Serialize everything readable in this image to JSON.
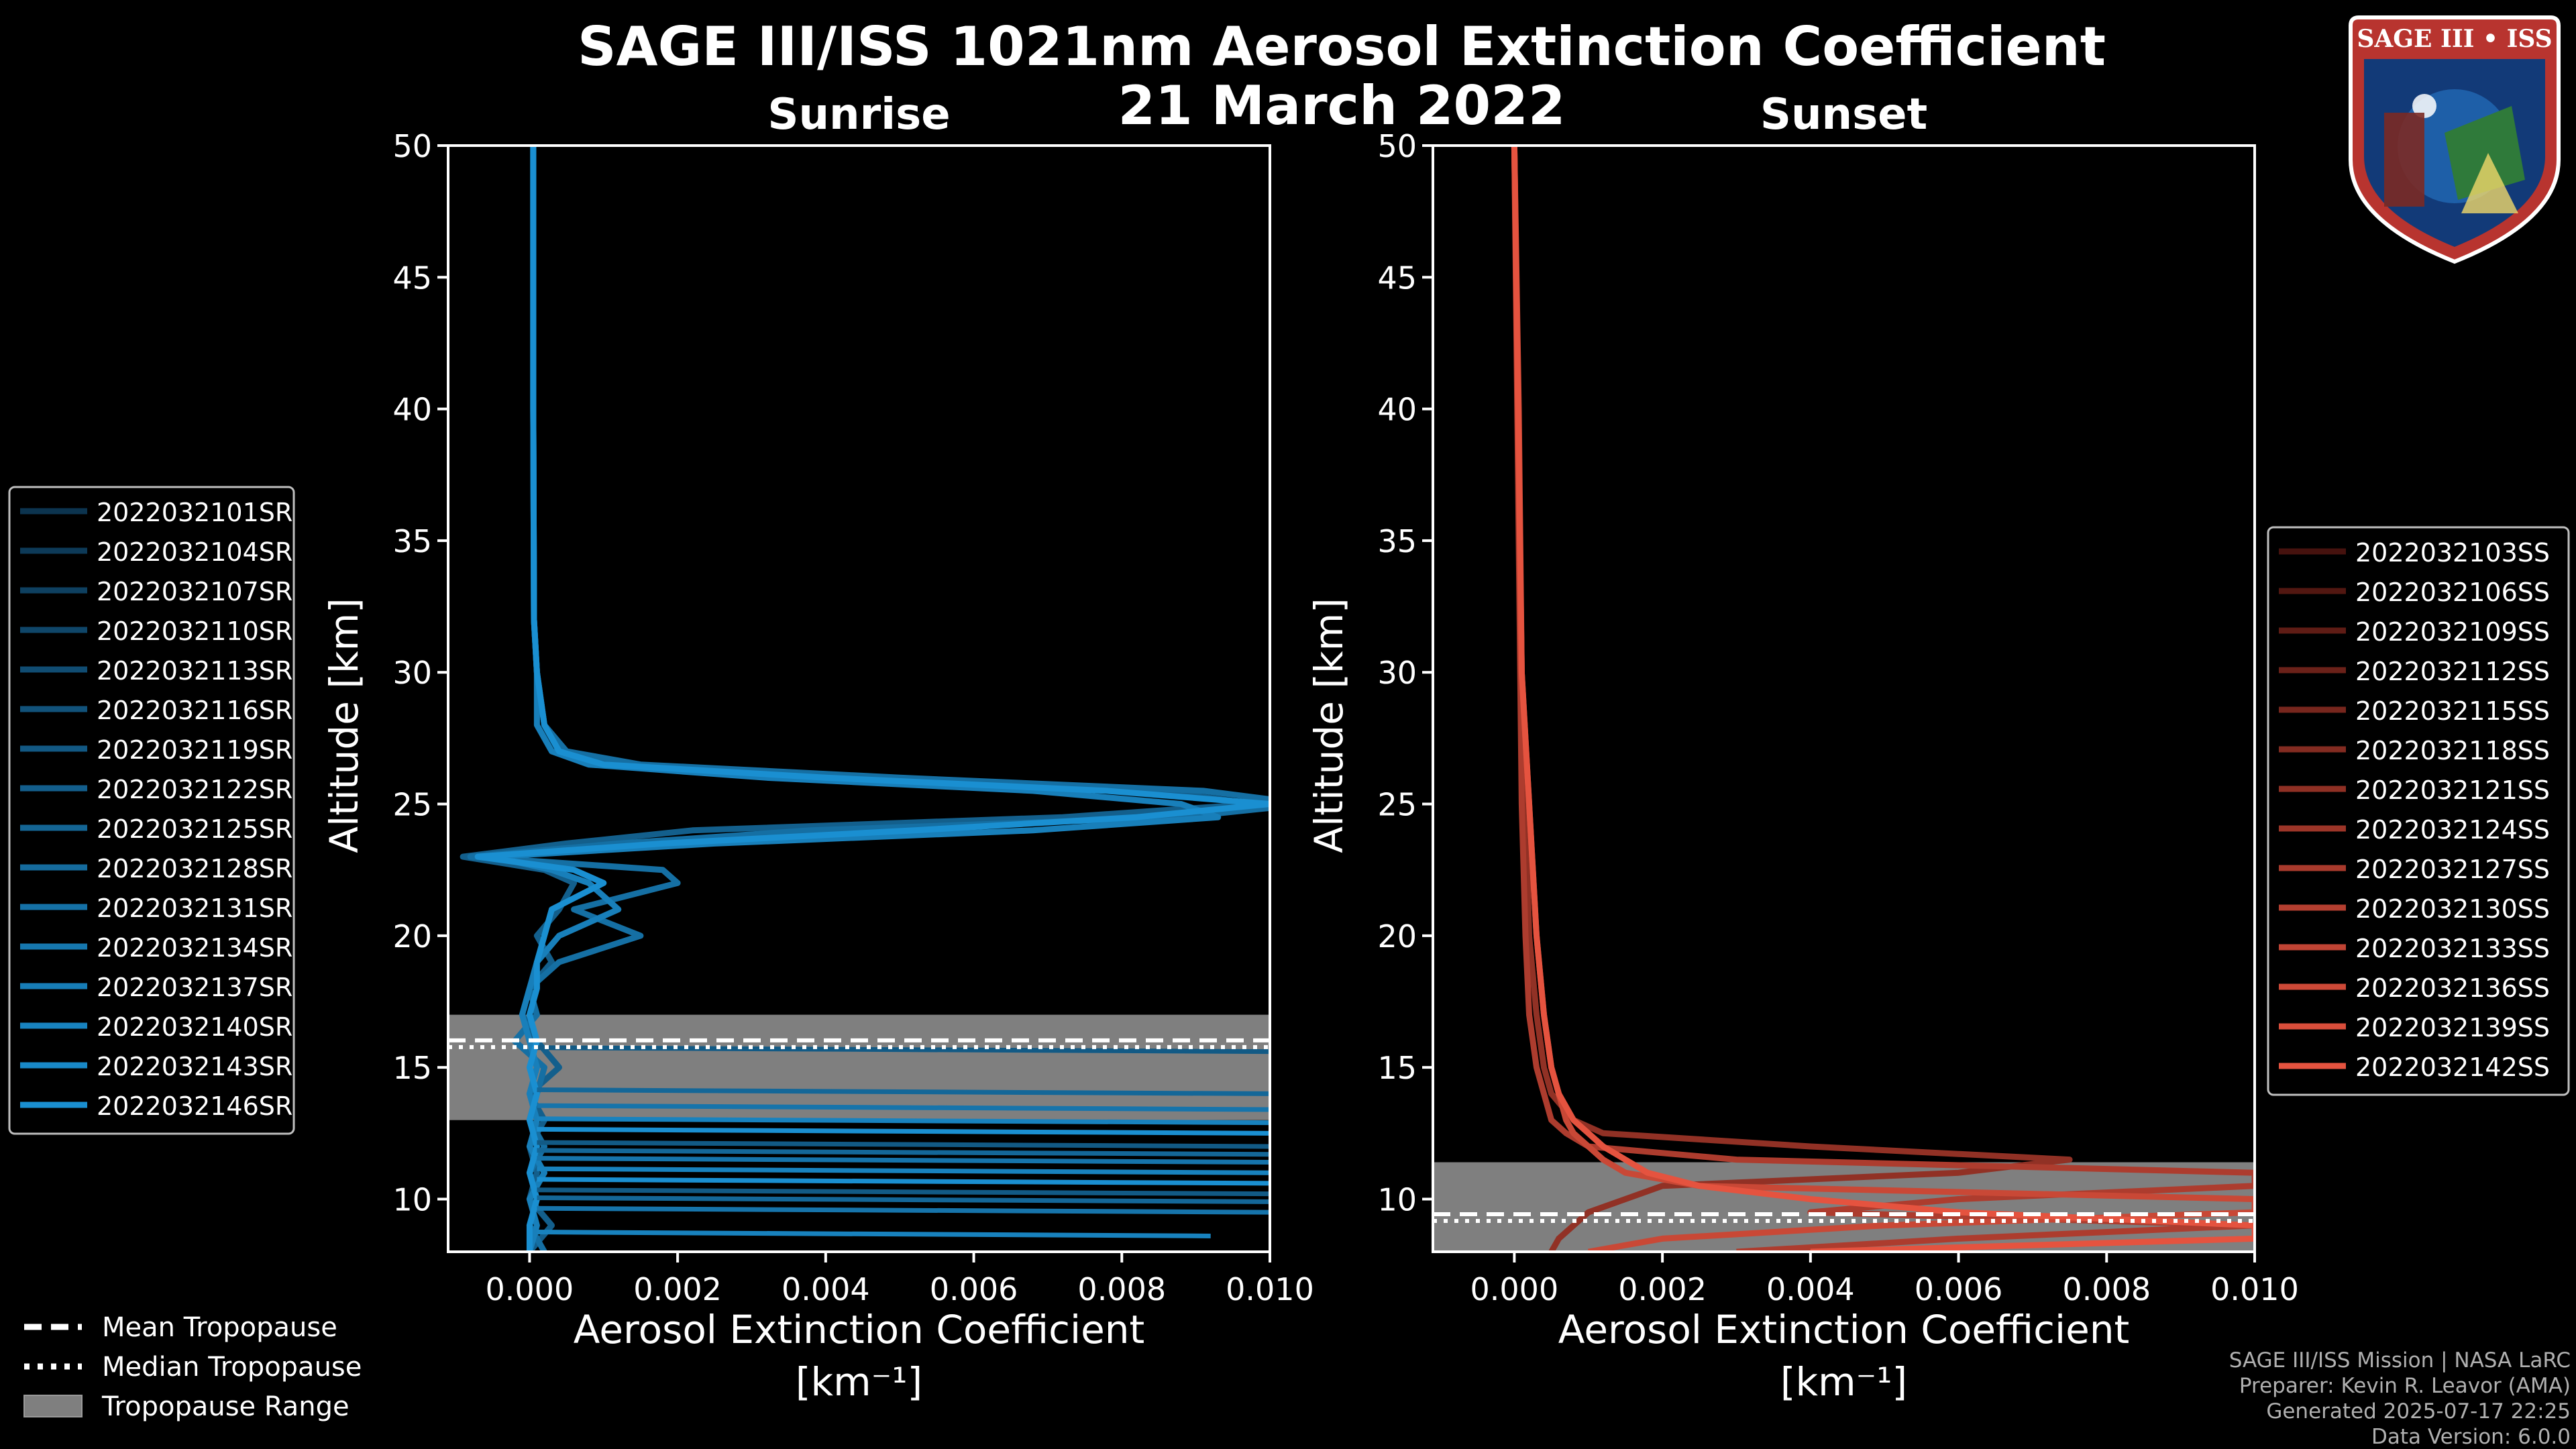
{
  "title_line1": "SAGE III/ISS 1021nm Aerosol Extinction Coefficient",
  "title_line2": "21 March 2022",
  "colors": {
    "background": "#000000",
    "sunrise_series": "#1a8fd1",
    "sunset_series": "#e5533f",
    "tropopause_band": "#7f7f7f",
    "legend_border": "#bfbfbf"
  },
  "sunrise_legend": [
    "2022032101SR",
    "2022032104SR",
    "2022032107SR",
    "2022032110SR",
    "2022032113SR",
    "2022032116SR",
    "2022032119SR",
    "2022032122SR",
    "2022032125SR",
    "2022032128SR",
    "2022032131SR",
    "2022032134SR",
    "2022032137SR",
    "2022032140SR",
    "2022032143SR",
    "2022032146SR"
  ],
  "sunset_legend": [
    "2022032103SS",
    "2022032106SS",
    "2022032109SS",
    "2022032112SS",
    "2022032115SS",
    "2022032118SS",
    "2022032121SS",
    "2022032124SS",
    "2022032127SS",
    "2022032130SS",
    "2022032133SS",
    "2022032136SS",
    "2022032139SS",
    "2022032142SS"
  ],
  "tropopause_legend": [
    "Mean Tropopause",
    "Median Tropopause",
    "Tropopause Range"
  ],
  "credits": [
    "SAGE III/ISS Mission | NASA LaRC",
    "Preparer: Kevin R. Leavor (AMA)",
    "Generated 2025-07-17 22:25",
    "Data Version: 6.0.0"
  ],
  "logo": {
    "text": "SAGE III • ISS"
  },
  "chart_data": [
    {
      "type": "line",
      "panel": "sunrise",
      "title": "Sunrise",
      "xlabel": "Aerosol Extinction Coefficient",
      "xlabel_units": "[km⁻¹]",
      "ylabel": "Altitude [km]",
      "xlim": [
        -0.0011,
        0.01
      ],
      "ylim": [
        8,
        50
      ],
      "xticks": [
        0.0,
        0.002,
        0.004,
        0.006,
        0.008,
        0.01
      ],
      "xtick_labels": [
        "0.000",
        "0.002",
        "0.004",
        "0.006",
        "0.008",
        "0.010"
      ],
      "yticks": [
        10,
        15,
        20,
        25,
        30,
        35,
        40,
        45,
        50
      ],
      "ytick_labels": [
        "10",
        "15",
        "20",
        "25",
        "30",
        "35",
        "40",
        "45",
        "50"
      ],
      "tropopause": {
        "mean": 15.9,
        "median": 15.9,
        "range": [
          13.0,
          17.0
        ]
      },
      "series_profile_points": [
        {
          "alt": [
            50,
            40,
            32,
            30,
            28,
            27,
            26.5,
            26,
            25.5,
            25,
            24.5,
            24,
            23.5,
            23,
            22.5,
            22,
            21,
            20,
            19,
            18,
            17,
            16,
            15,
            14,
            13,
            12,
            11,
            10,
            9,
            8
          ],
          "ext": [
            5e-05,
            5e-05,
            6e-05,
            0.0001,
            0.0002,
            0.0004,
            0.0012,
            0.0045,
            0.0085,
            0.0098,
            0.0072,
            0.0022,
            0.0005,
            -0.0009,
            0.0002,
            0.0006,
            0.0004,
            0.0001,
            0.0003,
            0.0,
            -0.0001,
            0.0001,
            0.0004,
            0.0,
            0.0002,
            0.0,
            0.0001,
            0.0,
            0.0003,
            0.0
          ]
        },
        {
          "alt": [
            50,
            40,
            32,
            30,
            28,
            27,
            26.5,
            26,
            25.5,
            25,
            24.5,
            24,
            23.5,
            23,
            22.5,
            22,
            21,
            20,
            19,
            18,
            17,
            16,
            15,
            14,
            13,
            12,
            11,
            10,
            9,
            8
          ],
          "ext": [
            5e-05,
            5e-05,
            6e-05,
            0.0001,
            0.0002,
            0.0005,
            0.0015,
            0.005,
            0.0091,
            0.0105,
            0.0088,
            0.0038,
            0.0012,
            -0.0008,
            0.0018,
            0.002,
            0.0006,
            0.0015,
            0.0004,
            0.0,
            0.0001,
            -0.0002,
            0.0002,
            0.0001,
            0.0,
            0.0002,
            0.0,
            0.0001,
            0.0,
            0.0002
          ]
        },
        {
          "alt": [
            50,
            40,
            32,
            30,
            28,
            27,
            26.5,
            26,
            25.5,
            25,
            24.5,
            24,
            23.5,
            23,
            22.5,
            22,
            21,
            20,
            19,
            18,
            17,
            16,
            15,
            14,
            13,
            12,
            11,
            10,
            9,
            8
          ],
          "ext": [
            5e-05,
            5e-05,
            6e-05,
            0.0001,
            0.0001,
            0.0003,
            0.0008,
            0.0032,
            0.0068,
            0.0088,
            0.0093,
            0.0068,
            0.0025,
            -0.0005,
            0.0003,
            0.0008,
            0.0012,
            0.0004,
            0.0001,
            0.0,
            -0.0001,
            0.0,
            0.0001,
            0.0,
            0.0001,
            0.0,
            0.0002,
            0.0,
            0.0001,
            0.0
          ]
        },
        {
          "alt": [
            50,
            40,
            32,
            30,
            28,
            27,
            26.5,
            26,
            25.5,
            25,
            24.5,
            24,
            23.5,
            23,
            22.5,
            22,
            21,
            20,
            19,
            18,
            17,
            16,
            15,
            14,
            13,
            12,
            11,
            10,
            9,
            8
          ],
          "ext": [
            5e-05,
            5e-05,
            6e-05,
            0.0001,
            0.0002,
            0.0004,
            0.001,
            0.004,
            0.0078,
            0.01,
            0.0082,
            0.0052,
            0.0018,
            -0.0007,
            0.0006,
            0.001,
            0.0003,
            0.0002,
            0.0001,
            0.0001,
            0.0,
            0.0001,
            0.0,
            0.0001,
            0.0,
            0.0001,
            0.0,
            0.0001,
            0.0,
            0.0
          ]
        }
      ],
      "low_altitude_spikes": [
        {
          "alt": 15.6,
          "ext": 0.01
        },
        {
          "alt": 14.0,
          "ext": 0.01
        },
        {
          "alt": 13.4,
          "ext": 0.01
        },
        {
          "alt": 12.9,
          "ext": 0.01
        },
        {
          "alt": 12.5,
          "ext": 0.01
        },
        {
          "alt": 12.0,
          "ext": 0.01
        },
        {
          "alt": 11.7,
          "ext": 0.01
        },
        {
          "alt": 11.4,
          "ext": 0.01
        },
        {
          "alt": 11.0,
          "ext": 0.01
        },
        {
          "alt": 10.6,
          "ext": 0.01
        },
        {
          "alt": 10.2,
          "ext": 0.01
        },
        {
          "alt": 9.9,
          "ext": 0.01
        },
        {
          "alt": 9.5,
          "ext": 0.01
        },
        {
          "alt": 8.6,
          "ext": 0.0092
        }
      ]
    },
    {
      "type": "line",
      "panel": "sunset",
      "title": "Sunset",
      "xlabel": "Aerosol Extinction Coefficient",
      "xlabel_units": "[km⁻¹]",
      "ylabel": "Altitude [km]",
      "xlim": [
        -0.0011,
        0.01
      ],
      "ylim": [
        8,
        50
      ],
      "xticks": [
        0.0,
        0.002,
        0.004,
        0.006,
        0.008,
        0.01
      ],
      "xtick_labels": [
        "0.000",
        "0.002",
        "0.004",
        "0.006",
        "0.008",
        "0.010"
      ],
      "yticks": [
        10,
        15,
        20,
        25,
        30,
        35,
        40,
        45,
        50
      ],
      "ytick_labels": [
        "10",
        "15",
        "20",
        "25",
        "30",
        "35",
        "40",
        "45",
        "50"
      ],
      "tropopause": {
        "mean": 9.3,
        "median": 9.3,
        "range": [
          8.0,
          11.4
        ]
      },
      "series_profile_points": [
        {
          "alt": [
            50,
            40,
            30,
            25,
            20,
            17,
            15,
            14,
            13,
            12.5,
            12,
            11.5,
            11,
            10.5,
            10,
            9.5,
            9,
            8.5,
            8
          ],
          "ext": [
            0.0,
            5e-05,
            0.0001,
            0.00015,
            0.0002,
            0.0003,
            0.0004,
            0.0005,
            0.0008,
            0.0012,
            0.004,
            0.0075,
            0.006,
            0.002,
            0.0015,
            0.001,
            0.0008,
            0.0006,
            0.0005
          ]
        },
        {
          "alt": [
            50,
            40,
            30,
            25,
            20,
            17,
            15,
            14,
            13,
            12.5,
            12,
            11.5,
            11,
            10.5,
            10,
            9.5,
            9,
            8.5,
            8
          ],
          "ext": [
            0.0,
            4e-05,
            8e-05,
            0.0001,
            0.00015,
            0.0002,
            0.0003,
            0.0004,
            0.0005,
            0.0007,
            0.001,
            0.003,
            0.01,
            0.01,
            0.006,
            0.004,
            0.01,
            0.006,
            0.003
          ]
        },
        {
          "alt": [
            50,
            40,
            30,
            25,
            20,
            17,
            15,
            14,
            13,
            12.5,
            12,
            11.5,
            11,
            10.5,
            10,
            9.5,
            9,
            8.5,
            8
          ],
          "ext": [
            0.0,
            6e-05,
            0.0001,
            0.0002,
            0.0003,
            0.0004,
            0.0005,
            0.0006,
            0.0007,
            0.0008,
            0.001,
            0.0012,
            0.0015,
            0.0025,
            0.01,
            0.01,
            0.005,
            0.002,
            0.001
          ]
        },
        {
          "alt": [
            50,
            40,
            30,
            25,
            20,
            17,
            15,
            14,
            13,
            12.5,
            12,
            11.5,
            11,
            10.5,
            10,
            9.5,
            9,
            8.5,
            8
          ],
          "ext": [
            0.0,
            5e-05,
            0.0001,
            0.0002,
            0.0003,
            0.0004,
            0.0005,
            0.0006,
            0.0008,
            0.001,
            0.0012,
            0.0015,
            0.0018,
            0.0025,
            0.004,
            0.006,
            0.01,
            0.01,
            0.004
          ]
        }
      ]
    }
  ]
}
